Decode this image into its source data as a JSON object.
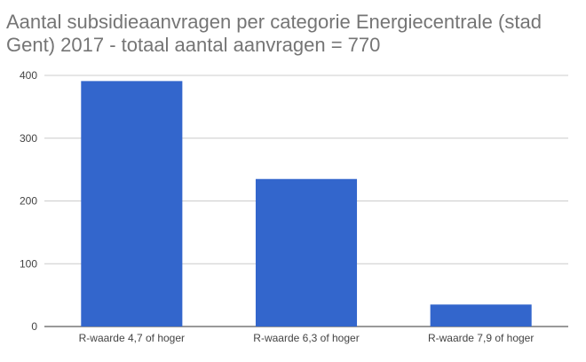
{
  "chart_data": {
    "type": "bar",
    "title": "Aantal subsidieaanvragen per categorie Energiecentrale (stad Gent) 2017 - totaal aantal aanvragen = 770",
    "categories": [
      "R-waarde 4,7 of hoger",
      "R-waarde 6,3 of hoger",
      "R-waarde 7,9 of hoger"
    ],
    "values": [
      391,
      235,
      35
    ],
    "ylim": [
      0,
      400
    ],
    "yticks": [
      0,
      100,
      200,
      300,
      400
    ],
    "grid": true,
    "xlabel": "",
    "ylabel": "",
    "bar_color": "#3366cc"
  }
}
